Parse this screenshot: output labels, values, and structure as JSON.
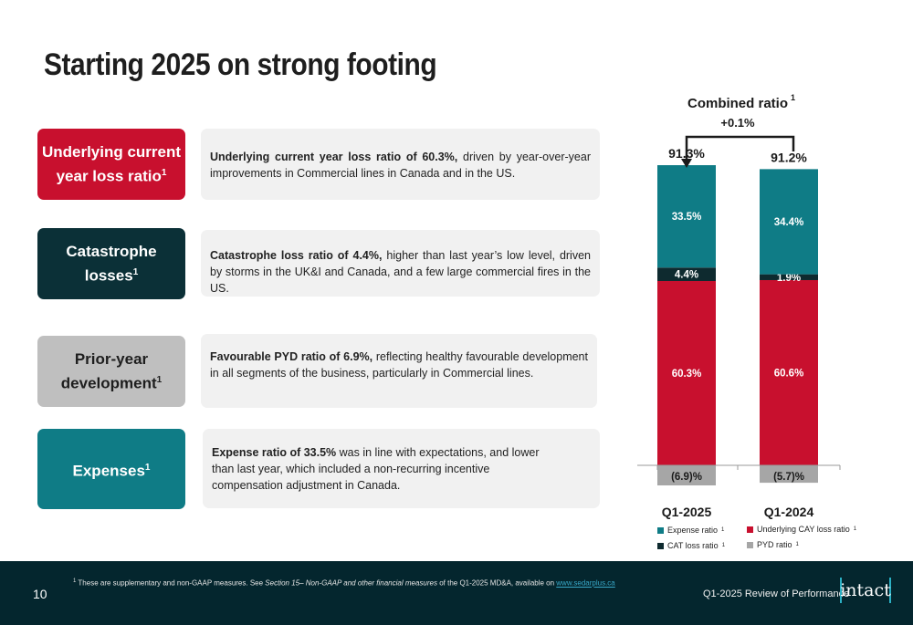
{
  "title": "Starting 2025 on strong footing",
  "colors": {
    "red": "#c8102e",
    "dark": "#0b3037",
    "grey": "#bfbfbf",
    "teal": "#0f7c86",
    "cat": "#0e2a2f",
    "pyd": "#a6a6a6"
  },
  "items": [
    {
      "pill_line1": "Underlying current",
      "pill_line2": "year loss ratio",
      "sup": "1",
      "desc_bold": "Underlying current year loss ratio of 60.3%,",
      "desc_rest": " driven by year-over-year improvements in Commercial lines in Canada and in the US."
    },
    {
      "pill_line1": "Catastrophe",
      "pill_line2": "losses",
      "sup": "1",
      "desc_bold": "Catastrophe loss ratio of 4.4%,",
      "desc_rest": " higher than last year’s low level, driven by storms in the UK&I and Canada, and a few large commercial fires in the US."
    },
    {
      "pill_line1": "Prior-year",
      "pill_line2": "development",
      "sup": "1",
      "desc_bold": "Favourable PYD ratio of 6.9%,",
      "desc_rest": " reflecting healthy favourable development in all segments of the business, particularly in Commercial lines."
    },
    {
      "pill_line1": "Expenses",
      "pill_line2": "",
      "sup": "1",
      "desc_bold": "Expense ratio of 33.5%",
      "desc_rest": " was in line with expectations, and lower than last year, which included a non-recurring incentive compensation adjustment in Canada."
    }
  ],
  "chart_data": {
    "type": "bar",
    "stacked": true,
    "title": "Combined ratio",
    "title_sup": "1",
    "change_label": "+0.1%",
    "categories": [
      "Q1-2025",
      "Q1-2024"
    ],
    "totals": [
      "91.3%",
      "91.2%"
    ],
    "unit": "%",
    "series": [
      {
        "name": "Underlying CAY loss ratio",
        "values": [
          60.3,
          60.6
        ],
        "labels": [
          "60.3%",
          "60.6%"
        ],
        "color": "#c8102e"
      },
      {
        "name": "CAT loss ratio",
        "values": [
          4.4,
          1.9
        ],
        "labels": [
          "4.4%",
          "1.9%"
        ],
        "color": "#0e2a2f"
      },
      {
        "name": "Expense ratio",
        "values": [
          33.5,
          34.4
        ],
        "labels": [
          "33.5%",
          "34.4%"
        ],
        "color": "#0f7c86"
      },
      {
        "name": "PYD ratio",
        "values": [
          -6.9,
          -5.7
        ],
        "labels": [
          "(6.9)%",
          "(5.7)%"
        ],
        "color": "#a6a6a6"
      }
    ],
    "legend": [
      {
        "name": "Expense ratio",
        "sup": "1",
        "color": "#0f7c86"
      },
      {
        "name": "Underlying CAY loss ratio",
        "sup": "1",
        "color": "#c8102e"
      },
      {
        "name": "CAT loss ratio",
        "sup": "1",
        "color": "#0e2a2f"
      },
      {
        "name": "PYD ratio",
        "sup": "1",
        "color": "#a6a6a6"
      }
    ]
  },
  "footer": {
    "footnote_sup": "1",
    "footnote_pre": " These are supplementary and non-GAAP measures. See ",
    "footnote_italic": "Section 15– Non-GAAP and other financial measures",
    "footnote_post": " of the Q1-2025 MD&A, available on ",
    "footnote_link": "www.sedarplus.ca",
    "page_number": "10",
    "review_label": "Q1-2025 Review of Performance",
    "logo_text": "intact"
  }
}
